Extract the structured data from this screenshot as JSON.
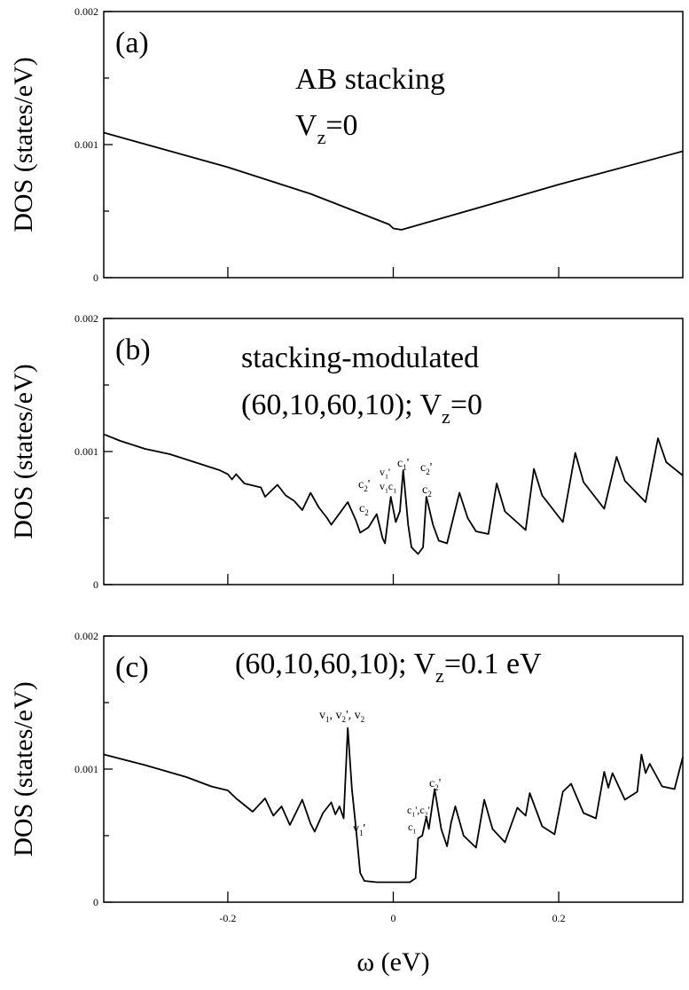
{
  "chart_data": [
    {
      "type": "line",
      "panel_label": "(a)",
      "ylabel": "DOS (states/eV)",
      "annotations": [
        [
          {
            "text": "AB stacking"
          }
        ],
        [
          {
            "text": "V"
          },
          {
            "sub": "z"
          },
          {
            "text": "=0"
          }
        ]
      ],
      "x": [
        -0.35,
        -0.2,
        -0.1,
        -0.005,
        0,
        0.01,
        0.1,
        0.2,
        0.35
      ],
      "values": [
        0.00109,
        0.00083,
        0.00063,
        0.0004,
        0.00037,
        0.00036,
        0.00052,
        0.0007,
        0.00095
      ],
      "color": "#000000",
      "xlim": [
        -0.35,
        0.35
      ],
      "xticks": [
        -0.2,
        0,
        0.2
      ],
      "show_xtick_labels": false,
      "ylim": [
        0,
        0.002
      ],
      "yticks": [
        0,
        0.001,
        0.002
      ],
      "yminorticks": [
        0.0005,
        0.0015
      ]
    },
    {
      "type": "line",
      "panel_label": "(b)",
      "ylabel": "DOS (states/eV)",
      "annotations": [
        [
          {
            "text": "stacking-modulated"
          }
        ],
        [
          {
            "text": "(60,10,60,10); V"
          },
          {
            "sub": "z"
          },
          {
            "text": "=0"
          }
        ],
        [
          {
            "text": "c"
          },
          {
            "sub": "2"
          },
          {
            "text": "'"
          }
        ],
        [
          {
            "text": "c"
          },
          {
            "sub": "2"
          }
        ],
        [
          {
            "text": "v"
          },
          {
            "sub": "1"
          },
          {
            "text": "'"
          }
        ],
        [
          {
            "text": "v"
          },
          {
            "sub": "1"
          },
          {
            "text": "c"
          },
          {
            "sub": "1"
          }
        ],
        [
          {
            "text": "c"
          },
          {
            "sub": "1"
          },
          {
            "text": "'"
          }
        ],
        [
          {
            "text": "c"
          },
          {
            "sub": "2"
          },
          {
            "text": "'"
          }
        ],
        [
          {
            "text": "c"
          },
          {
            "sub": "2"
          }
        ]
      ],
      "x": [
        -0.35,
        -0.33,
        -0.3,
        -0.27,
        -0.24,
        -0.21,
        -0.2,
        -0.195,
        -0.19,
        -0.18,
        -0.16,
        -0.155,
        -0.14,
        -0.13,
        -0.12,
        -0.11,
        -0.1,
        -0.09,
        -0.08,
        -0.075,
        -0.055,
        -0.045,
        -0.04,
        -0.03,
        -0.02,
        -0.013,
        -0.01,
        -0.003,
        0.003,
        0.008,
        0.012,
        0.018,
        0.022,
        0.03,
        0.036,
        0.04,
        0.048,
        0.055,
        0.065,
        0.08,
        0.09,
        0.1,
        0.115,
        0.125,
        0.135,
        0.16,
        0.17,
        0.18,
        0.205,
        0.22,
        0.23,
        0.255,
        0.27,
        0.28,
        0.305,
        0.32,
        0.33,
        0.35
      ],
      "values": [
        0.00113,
        0.00108,
        0.00102,
        0.00098,
        0.00092,
        0.00086,
        0.00083,
        0.00079,
        0.00083,
        0.00076,
        0.00073,
        0.00066,
        0.00075,
        0.00067,
        0.00063,
        0.00056,
        0.00069,
        0.00058,
        0.0005,
        0.00045,
        0.00062,
        0.00048,
        0.00039,
        0.00043,
        0.00053,
        0.00035,
        0.00031,
        0.00066,
        0.00047,
        0.00055,
        0.00086,
        0.00045,
        0.00028,
        0.00023,
        0.00028,
        0.00066,
        0.00045,
        0.00033,
        0.00031,
        0.00069,
        0.0005,
        0.0004,
        0.00038,
        0.00076,
        0.00055,
        0.00041,
        0.00087,
        0.00067,
        0.00047,
        0.00099,
        0.00077,
        0.00057,
        0.00096,
        0.00078,
        0.00062,
        0.0011,
        0.00092,
        0.00082
      ],
      "color": "#000000",
      "xlim": [
        -0.35,
        0.35
      ],
      "xticks": [
        -0.2,
        0,
        0.2
      ],
      "show_xtick_labels": false,
      "ylim": [
        0,
        0.002
      ],
      "yticks": [
        0,
        0.001,
        0.002
      ],
      "yminorticks": [
        0.0005,
        0.0015
      ]
    },
    {
      "type": "line",
      "panel_label": "(c)",
      "ylabel": "DOS (states/eV)",
      "xlabel": "ω (eV)",
      "annotations": [
        [
          {
            "text": "(60,10,60,10); V"
          },
          {
            "sub": "z"
          },
          {
            "text": "=0.1 eV"
          }
        ],
        [
          {
            "text": "v"
          },
          {
            "sub": "1"
          },
          {
            "text": ", v"
          },
          {
            "sub": "2"
          },
          {
            "text": "', v"
          },
          {
            "sub": "2"
          }
        ],
        [
          {
            "text": "v"
          },
          {
            "sub": "1"
          },
          {
            "text": "'"
          }
        ],
        [
          {
            "text": "c"
          },
          {
            "sub": "1"
          },
          {
            "text": "',c"
          },
          {
            "sub": "2"
          },
          {
            "text": "'"
          }
        ],
        [
          {
            "text": "c"
          },
          {
            "sub": "1"
          }
        ],
        [
          {
            "text": "c"
          },
          {
            "sub": "2"
          },
          {
            "text": "'"
          }
        ]
      ],
      "x": [
        -0.35,
        -0.3,
        -0.25,
        -0.22,
        -0.2,
        -0.19,
        -0.17,
        -0.155,
        -0.145,
        -0.135,
        -0.125,
        -0.11,
        -0.1,
        -0.095,
        -0.085,
        -0.075,
        -0.07,
        -0.065,
        -0.06,
        -0.055,
        -0.05,
        -0.045,
        -0.04,
        -0.035,
        -0.02,
        0,
        0.02,
        0.027,
        0.03,
        0.035,
        0.04,
        0.043,
        0.05,
        0.058,
        0.065,
        0.07,
        0.075,
        0.085,
        0.1,
        0.11,
        0.12,
        0.135,
        0.15,
        0.16,
        0.165,
        0.18,
        0.195,
        0.205,
        0.215,
        0.23,
        0.245,
        0.255,
        0.26,
        0.265,
        0.28,
        0.295,
        0.3,
        0.305,
        0.31,
        0.325,
        0.34,
        0.35
      ],
      "values": [
        0.00111,
        0.00103,
        0.00094,
        0.00087,
        0.00084,
        0.00078,
        0.00068,
        0.00078,
        0.00065,
        0.00072,
        0.00058,
        0.00077,
        0.00059,
        0.00053,
        0.00067,
        0.00075,
        0.00066,
        0.00072,
        0.00063,
        0.00131,
        0.00085,
        0.00055,
        0.00022,
        0.00016,
        0.00015,
        0.00015,
        0.00015,
        0.00018,
        0.00048,
        0.0005,
        0.00064,
        0.00055,
        0.00085,
        0.00055,
        0.00042,
        0.0006,
        0.00072,
        0.0005,
        0.00041,
        0.00077,
        0.00055,
        0.00045,
        0.00071,
        0.00065,
        0.00082,
        0.00057,
        0.00051,
        0.00083,
        0.00089,
        0.00067,
        0.00063,
        0.00098,
        0.00086,
        0.00097,
        0.00077,
        0.00083,
        0.00111,
        0.00097,
        0.00104,
        0.00087,
        0.00085,
        0.00109
      ],
      "color": "#000000",
      "xlim": [
        -0.35,
        0.35
      ],
      "xticks": [
        -0.2,
        0,
        0.2
      ],
      "show_xtick_labels": true,
      "ylim": [
        0,
        0.002
      ],
      "yticks": [
        0,
        0.001,
        0.002
      ],
      "yminorticks": [
        0.0005,
        0.0015
      ]
    }
  ]
}
